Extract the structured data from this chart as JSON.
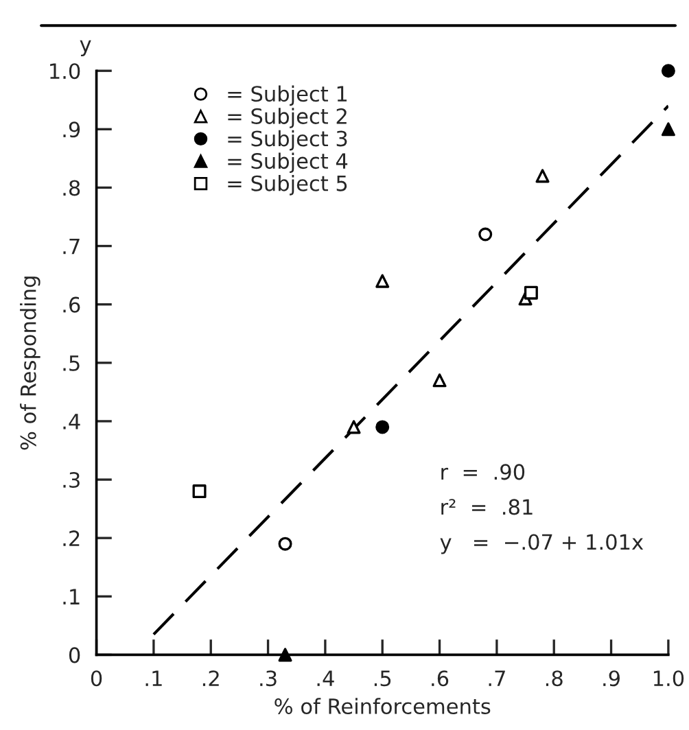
{
  "chart_data": {
    "type": "scatter",
    "xlabel": "% of Reinforcements",
    "ylabel": "% of Responding",
    "xlim": [
      0,
      1.0
    ],
    "ylim": [
      0,
      1.0
    ],
    "xticks": [
      0,
      {
        "value": 0.1,
        "label": ".1"
      },
      {
        "value": 0.2,
        "label": ".2"
      },
      {
        "value": 0.3,
        "label": ".3"
      },
      {
        "value": 0.4,
        "label": ".4"
      },
      {
        "value": 0.5,
        "label": ".5"
      },
      {
        "value": 0.6,
        "label": ".6"
      },
      {
        "value": 0.7,
        "label": ".7"
      },
      {
        "value": 0.8,
        "label": ".8"
      },
      {
        "value": 0.9,
        "label": ".9"
      },
      {
        "value": 1.0,
        "label": "1.0"
      }
    ],
    "yticks": [
      0,
      {
        "value": 0.1,
        "label": ".1"
      },
      {
        "value": 0.2,
        "label": ".2"
      },
      {
        "value": 0.3,
        "label": ".3"
      },
      {
        "value": 0.4,
        "label": ".4"
      },
      {
        "value": 0.5,
        "label": ".5"
      },
      {
        "value": 0.6,
        "label": ".6"
      },
      {
        "value": 0.7,
        "label": ".7"
      },
      {
        "value": 0.8,
        "label": ".8"
      },
      {
        "value": 0.9,
        "label": ".9"
      },
      {
        "value": 1.0,
        "label": "1.0"
      }
    ],
    "legend": "top left",
    "grid": false,
    "series": [
      {
        "name": "= Subject 1",
        "marker": "circle",
        "color": "#ffffff",
        "x": [
          0.68,
          0.33
        ],
        "values": [
          0.72,
          0.19
        ]
      },
      {
        "name": "= Subject 2",
        "marker": "triangle",
        "color": "#ffffff",
        "x": [
          0.5,
          0.78,
          0.6,
          0.45,
          0.75
        ],
        "values": [
          0.64,
          0.82,
          0.47,
          0.39,
          0.61
        ]
      },
      {
        "name": "= Subject 3",
        "marker": "circle",
        "color": "#000000",
        "x": [
          1.0,
          0.5
        ],
        "values": [
          1.0,
          0.39
        ]
      },
      {
        "name": "= Subject 4",
        "marker": "triangle",
        "color": "#000000",
        "x": [
          1.0,
          0.33
        ],
        "values": [
          0.9,
          0.0
        ]
      },
      {
        "name": "= Subject 5",
        "marker": "square",
        "color": "#ffffff",
        "x": [
          0.18,
          0.76
        ],
        "values": [
          0.28,
          0.62
        ]
      },
      {
        "type": "line",
        "line_style": "dashed",
        "color": "#000000",
        "x": [
          0.1,
          1.0
        ],
        "values": [
          0.035,
          0.94
        ]
      }
    ],
    "annotations": [
      "y",
      "r  =  .90",
      "r²  =  .81",
      "y   =  −.07 + 1.01x"
    ]
  }
}
